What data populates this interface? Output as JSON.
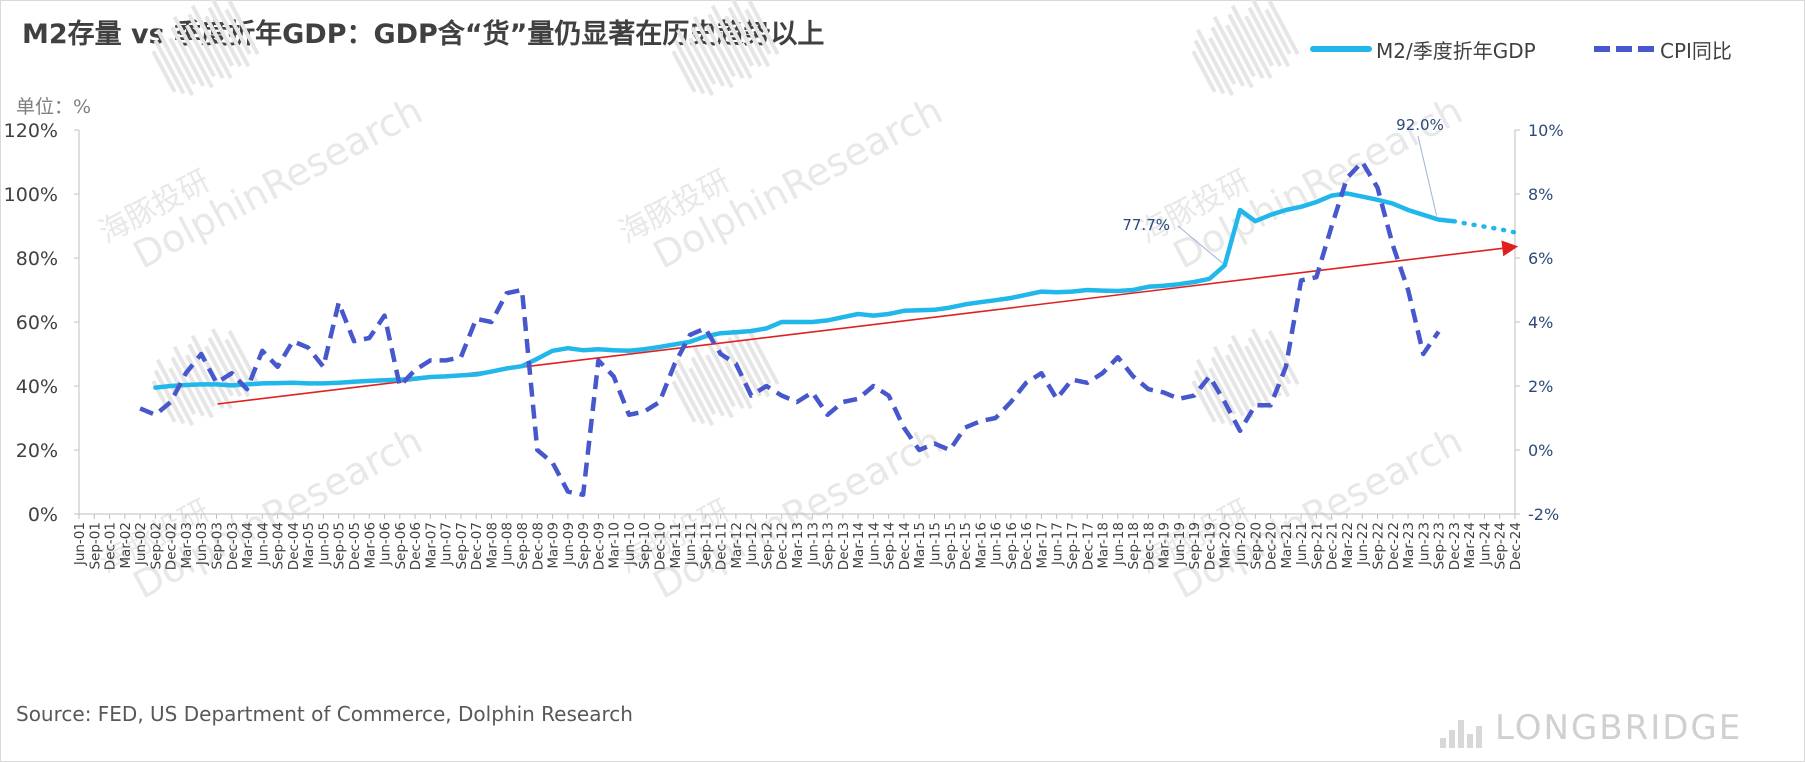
{
  "title": "M2存量 vs 季度折年GDP：GDP含“货”量仍显著在历史趋势以上",
  "unit_label": "单位：%",
  "source": "Source: FED, US Department of Commerce, Dolphin Research",
  "watermark": {
    "cn": "海豚投研",
    "en": "DolphinResearch"
  },
  "brand": "LONGBRIDGE",
  "colors": {
    "m2": "#22b7ea",
    "cpi": "#4757cc",
    "trend": "#e02020",
    "axis": "#404040",
    "annotation": "#2e4a7a"
  },
  "chart_data": {
    "type": "line",
    "categories": [
      "Jun-01",
      "Sep-01",
      "Dec-01",
      "Mar-02",
      "Jun-02",
      "Sep-02",
      "Dec-02",
      "Mar-03",
      "Jun-03",
      "Sep-03",
      "Dec-03",
      "Mar-04",
      "Jun-04",
      "Sep-04",
      "Dec-04",
      "Mar-05",
      "Jun-05",
      "Sep-05",
      "Dec-05",
      "Mar-06",
      "Jun-06",
      "Sep-06",
      "Dec-06",
      "Mar-07",
      "Jun-07",
      "Sep-07",
      "Dec-07",
      "Mar-08",
      "Jun-08",
      "Sep-08",
      "Dec-08",
      "Mar-09",
      "Jun-09",
      "Sep-09",
      "Dec-09",
      "Mar-10",
      "Jun-10",
      "Sep-10",
      "Dec-10",
      "Mar-11",
      "Jun-11",
      "Sep-11",
      "Dec-11",
      "Mar-12",
      "Jun-12",
      "Sep-12",
      "Dec-12",
      "Mar-13",
      "Jun-13",
      "Sep-13",
      "Dec-13",
      "Mar-14",
      "Jun-14",
      "Sep-14",
      "Dec-14",
      "Mar-15",
      "Jun-15",
      "Sep-15",
      "Dec-15",
      "Mar-16",
      "Jun-16",
      "Sep-16",
      "Dec-16",
      "Mar-17",
      "Jun-17",
      "Sep-17",
      "Dec-17",
      "Mar-18",
      "Jun-18",
      "Sep-18",
      "Dec-18",
      "Mar-19",
      "Jun-19",
      "Sep-19",
      "Dec-19",
      "Mar-20",
      "Jun-20",
      "Sep-20",
      "Dec-20",
      "Mar-21",
      "Jun-21",
      "Sep-21",
      "Dec-21",
      "Mar-22",
      "Jun-22",
      "Sep-22",
      "Dec-22",
      "Mar-23",
      "Jun-23",
      "Sep-23",
      "Dec-23",
      "Mar-24",
      "Jun-24",
      "Sep-24",
      "Dec-24"
    ],
    "left_axis": {
      "ticks": [
        "0%",
        "20%",
        "40%",
        "60%",
        "80%",
        "100%",
        "120%"
      ],
      "ylim": [
        0,
        120
      ]
    },
    "right_axis": {
      "ticks": [
        "-2%",
        "0%",
        "2%",
        "4%",
        "6%",
        "8%",
        "10%"
      ],
      "ylim": [
        -2,
        10
      ]
    },
    "series": [
      {
        "name": "M2/季度折年GDP",
        "axis": "left",
        "style": "solid",
        "values": [
          null,
          null,
          null,
          null,
          null,
          39.5,
          40,
          40.3,
          40.5,
          40.5,
          40.2,
          40.5,
          40.8,
          40.9,
          41.0,
          40.8,
          40.8,
          41.0,
          41.3,
          41.6,
          41.8,
          42.0,
          42.3,
          42.8,
          43.0,
          43.3,
          43.6,
          44.5,
          45.5,
          46.2,
          48.5,
          51.0,
          51.8,
          51.2,
          51.5,
          51.2,
          51.0,
          51.5,
          52.2,
          53.0,
          53.8,
          55.5,
          56.5,
          56.8,
          57.2,
          58.0,
          60.0,
          60.0,
          60.0,
          60.5,
          61.5,
          62.5,
          62.0,
          62.5,
          63.5,
          63.7,
          63.8,
          64.5,
          65.5,
          66.2,
          66.8,
          67.5,
          68.5,
          69.5,
          69.3,
          69.5,
          70.0,
          69.8,
          69.7,
          70.0,
          71.0,
          71.3,
          71.8,
          72.5,
          73.5,
          77.7,
          95.0,
          91.5,
          93.5,
          95.0,
          96.0,
          97.5,
          99.5,
          100.2,
          99.2,
          98.2,
          97.0,
          95.0,
          93.5,
          92.0,
          91.5,
          90.6,
          89.8,
          89.0,
          88.0
        ],
        "projected_from": "Dec-23"
      },
      {
        "name": "CPI同比",
        "axis": "right",
        "style": "dashed",
        "values": [
          null,
          null,
          null,
          null,
          1.3,
          1.1,
          1.5,
          2.4,
          3.0,
          2.1,
          2.4,
          1.9,
          3.1,
          2.6,
          3.4,
          3.2,
          2.6,
          4.6,
          3.4,
          3.5,
          4.2,
          2.0,
          2.5,
          2.8,
          2.8,
          2.9,
          4.1,
          4.0,
          4.9,
          5.0,
          0.0,
          -0.4,
          -1.3,
          -1.4,
          2.8,
          2.3,
          1.1,
          1.2,
          1.5,
          2.7,
          3.6,
          3.8,
          3.0,
          2.7,
          1.7,
          2.0,
          1.7,
          1.5,
          1.8,
          1.1,
          1.5,
          1.6,
          2.0,
          1.7,
          0.7,
          0.0,
          0.2,
          0.0,
          0.7,
          0.9,
          1.0,
          1.5,
          2.1,
          2.4,
          1.6,
          2.2,
          2.1,
          2.4,
          2.9,
          2.3,
          1.9,
          1.8,
          1.6,
          1.7,
          2.3,
          1.5,
          0.6,
          1.4,
          1.4,
          2.6,
          5.3,
          5.4,
          7.0,
          8.5,
          9.0,
          8.2,
          6.4,
          5.0,
          3.0,
          3.7,
          null,
          null,
          null,
          null,
          null
        ]
      }
    ],
    "annotations": [
      {
        "text": "77.7%",
        "series": "M2/季度折年GDP",
        "at": "Mar-20"
      },
      {
        "text": "92.0%",
        "series": "M2/季度折年GDP",
        "at": "Sep-23"
      }
    ],
    "trendline": {
      "axis": "left",
      "from": {
        "x": "Sep-03",
        "y": 35.0
      },
      "to": {
        "x": "Dec-24",
        "y": 83.5
      }
    },
    "legend": "top-right",
    "grid": false
  }
}
